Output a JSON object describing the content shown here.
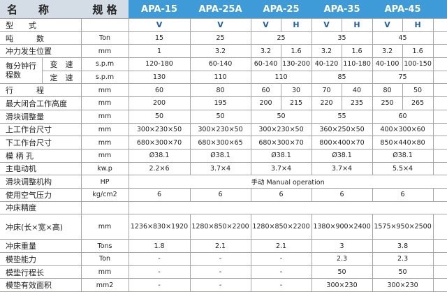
{
  "header": {
    "name_label": "名　　称",
    "spec_label": "规 格",
    "models": [
      "APA-15",
      "APA-25A",
      "APA-25",
      "APA-35",
      "APA-45"
    ]
  },
  "colors": {
    "header_blue": "#3f9bd7",
    "header_gray": "#d4dde5",
    "type_blue": "#1f5fb0"
  },
  "rows": [
    {
      "name": "型　　式",
      "unit": "",
      "type": true,
      "cells": [
        {
          "v": "V"
        },
        {
          "v": "V"
        },
        {
          "v": "V"
        },
        {
          "v": "H"
        },
        {
          "v": "V"
        },
        {
          "v": "H"
        },
        {
          "v": "V"
        },
        {
          "v": "H"
        }
      ]
    },
    {
      "name": "吨　　　数",
      "unit": "Ton",
      "cells": [
        {
          "v": "15"
        },
        {
          "v": "25"
        },
        {
          "v": "25",
          "cs": 2
        },
        {
          "v": "35",
          "cs": 2
        },
        {
          "v": "45",
          "cs": 2
        }
      ]
    },
    {
      "name": "冲力发生位置",
      "unit": "mm",
      "cells": [
        {
          "v": "1"
        },
        {
          "v": "3.2"
        },
        {
          "v": "3.2"
        },
        {
          "v": "1.6"
        },
        {
          "v": "3.2"
        },
        {
          "v": "1.6"
        },
        {
          "v": "3.2"
        },
        {
          "v": "1.6"
        }
      ]
    },
    {
      "name": "每分钟行程数",
      "sub": "变　速",
      "unit": "s.p.m",
      "cells": [
        {
          "v": "120-180"
        },
        {
          "v": "60-140"
        },
        {
          "v": "60-140"
        },
        {
          "v": "130-200"
        },
        {
          "v": "40-120"
        },
        {
          "v": "110-180"
        },
        {
          "v": "40-100"
        },
        {
          "v": "100-150"
        }
      ]
    },
    {
      "sub": "定　速",
      "unit": "s.p.m",
      "cells": [
        {
          "v": "130"
        },
        {
          "v": "110"
        },
        {
          "v": "110",
          "cs": 2
        },
        {
          "v": "85",
          "cs": 2
        },
        {
          "v": "75",
          "cs": 2
        }
      ]
    },
    {
      "name": "行　　　程",
      "unit": "mm",
      "cells": [
        {
          "v": "60"
        },
        {
          "v": "80"
        },
        {
          "v": "60"
        },
        {
          "v": "30"
        },
        {
          "v": "70"
        },
        {
          "v": "40"
        },
        {
          "v": "80"
        },
        {
          "v": "50"
        }
      ]
    },
    {
      "name": "最大闭合工作高度",
      "unit": "mm",
      "cells": [
        {
          "v": "200"
        },
        {
          "v": "195"
        },
        {
          "v": "200"
        },
        {
          "v": "215"
        },
        {
          "v": "220"
        },
        {
          "v": "235"
        },
        {
          "v": "250"
        },
        {
          "v": "265"
        }
      ]
    },
    {
      "name": "滑块调整量",
      "unit": "mm",
      "cells": [
        {
          "v": "50"
        },
        {
          "v": "50"
        },
        {
          "v": "50",
          "cs": 2
        },
        {
          "v": "55",
          "cs": 2
        },
        {
          "v": "60",
          "cs": 2
        }
      ]
    },
    {
      "name": "上工作台尺寸",
      "unit": "mm",
      "cells": [
        {
          "v": "300×230×50"
        },
        {
          "v": "300×230×50"
        },
        {
          "v": "300×230×50",
          "cs": 2
        },
        {
          "v": "360×250×50",
          "cs": 2
        },
        {
          "v": "400×300×60",
          "cs": 2
        }
      ]
    },
    {
      "name": "下工作台尺寸",
      "unit": "mm",
      "cells": [
        {
          "v": "680×300×70"
        },
        {
          "v": "680×300×65"
        },
        {
          "v": "680×300×70",
          "cs": 2
        },
        {
          "v": "800×400×70",
          "cs": 2
        },
        {
          "v": "850×440×80",
          "cs": 2
        }
      ]
    },
    {
      "name": "模 柄 孔",
      "unit": "mm",
      "cells": [
        {
          "v": "Ø38.1"
        },
        {
          "v": "Ø38.1"
        },
        {
          "v": "Ø38.1",
          "cs": 2
        },
        {
          "v": "Ø38.1",
          "cs": 2
        },
        {
          "v": "Ø38.1",
          "cs": 2
        }
      ]
    },
    {
      "name": "主电动机",
      "unit": "kw.p",
      "cells": [
        {
          "v": "2.2×6"
        },
        {
          "v": "3.7×4"
        },
        {
          "v": "3.7×4",
          "cs": 2
        },
        {
          "v": "3.7×4",
          "cs": 2
        },
        {
          "v": "5.5×4",
          "cs": 2
        }
      ]
    },
    {
      "name": "滑块调整机构",
      "unit": "HP",
      "cells": [
        {
          "v": "手动 Manual operation",
          "cs": 8
        }
      ]
    },
    {
      "name": "使用空气压力",
      "unit": "kg/cm2",
      "cells": [
        {
          "v": "6"
        },
        {
          "v": "6"
        },
        {
          "v": "6",
          "cs": 2
        },
        {
          "v": "6",
          "cs": 2
        },
        {
          "v": "6",
          "cs": 2
        }
      ]
    },
    {
      "name": "冲床精度",
      "unit": "",
      "blank": true,
      "cells": [
        {
          "v": "",
          "cs": 8
        }
      ]
    },
    {
      "name": "冲床(长×宽×高)",
      "unit": "mm",
      "tall": true,
      "cells": [
        {
          "v": "1236×830×1920"
        },
        {
          "v": "1280×850×2200"
        },
        {
          "v": "1280×850×2200",
          "cs": 2
        },
        {
          "v": "1380×900×2400",
          "cs": 2
        },
        {
          "v": "1575×950×2500",
          "cs": 2
        }
      ]
    },
    {
      "name": "冲床重量",
      "unit": "Tons",
      "cells": [
        {
          "v": "1.8"
        },
        {
          "v": "2.1"
        },
        {
          "v": "2.1",
          "cs": 2
        },
        {
          "v": "3",
          "cs": 2
        },
        {
          "v": "3.8",
          "cs": 2
        }
      ]
    },
    {
      "name": "模垫能力",
      "unit": "Ton",
      "cells": [
        {
          "v": "-"
        },
        {
          "v": "-"
        },
        {
          "v": "-",
          "cs": 2
        },
        {
          "v": "2.3",
          "cs": 2
        },
        {
          "v": "2.3",
          "cs": 2
        }
      ]
    },
    {
      "name": "模垫行程长",
      "unit": "mm",
      "cells": [
        {
          "v": "-"
        },
        {
          "v": "-"
        },
        {
          "v": "-",
          "cs": 2
        },
        {
          "v": "50",
          "cs": 2
        },
        {
          "v": "50",
          "cs": 2
        }
      ]
    },
    {
      "name": "模垫有效面积",
      "unit": "mm2",
      "cells": [
        {
          "v": "-"
        },
        {
          "v": "-"
        },
        {
          "v": "-",
          "cs": 2
        },
        {
          "v": "300×230",
          "cs": 2
        },
        {
          "v": "300×230",
          "cs": 2
        }
      ]
    }
  ]
}
